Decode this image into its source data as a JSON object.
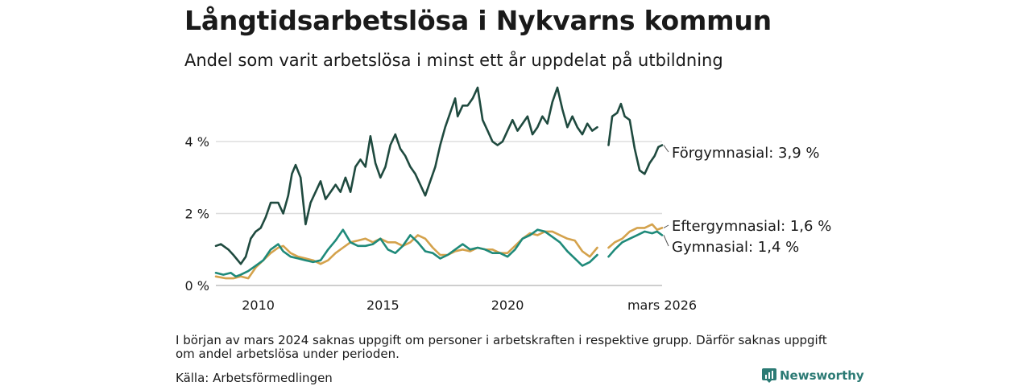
{
  "header": {
    "title": "Långtidsarbetslösa i Nykvarns kommun",
    "subtitle": "Andel som varit arbetslösa i minst ett år uppdelat på utbildning"
  },
  "footer": {
    "footnote": "I början av mars 2024 saknas uppgift om personer i arbetskraften i respektive grupp. Därför saknas uppgift om andel arbetslösa under perioden.",
    "source": "Källa: Arbetsförmedlingen",
    "brand": "Newsworthy"
  },
  "chart_data": {
    "type": "line",
    "title": "Långtidsarbetslösa i Nykvarns kommun",
    "subtitle": "Andel som varit arbetslösa i minst ett år uppdelat på utbildning",
    "xlabel": "",
    "ylabel": "",
    "xlim": [
      2008.3,
      2026.2
    ],
    "ylim": [
      0,
      5.7
    ],
    "y_ticks": [
      0,
      2,
      4
    ],
    "y_tick_labels": [
      "0 %",
      "2 %",
      "4 %"
    ],
    "x_ticks": [
      2010,
      2015,
      2020,
      2026.2
    ],
    "x_tick_labels": [
      "2010",
      "2015",
      "2020",
      "mars 2026"
    ],
    "grid": true,
    "gap": [
      2023.6,
      2024.05
    ],
    "series": [
      {
        "name": "Förgymnasial",
        "end_label": "Förgymnasial: 3,9 %",
        "color": "#1f4a3f",
        "points": [
          [
            2008.3,
            1.1
          ],
          [
            2008.5,
            1.15
          ],
          [
            2008.8,
            1.0
          ],
          [
            2009.0,
            0.85
          ],
          [
            2009.3,
            0.6
          ],
          [
            2009.5,
            0.8
          ],
          [
            2009.7,
            1.3
          ],
          [
            2009.9,
            1.5
          ],
          [
            2010.1,
            1.6
          ],
          [
            2010.3,
            1.9
          ],
          [
            2010.5,
            2.3
          ],
          [
            2010.8,
            2.3
          ],
          [
            2011.0,
            2.0
          ],
          [
            2011.2,
            2.5
          ],
          [
            2011.35,
            3.1
          ],
          [
            2011.5,
            3.35
          ],
          [
            2011.7,
            3.0
          ],
          [
            2011.9,
            1.7
          ],
          [
            2012.1,
            2.3
          ],
          [
            2012.3,
            2.6
          ],
          [
            2012.5,
            2.9
          ],
          [
            2012.7,
            2.4
          ],
          [
            2012.9,
            2.6
          ],
          [
            2013.1,
            2.8
          ],
          [
            2013.3,
            2.6
          ],
          [
            2013.5,
            3.0
          ],
          [
            2013.7,
            2.6
          ],
          [
            2013.9,
            3.3
          ],
          [
            2014.1,
            3.5
          ],
          [
            2014.3,
            3.3
          ],
          [
            2014.5,
            4.15
          ],
          [
            2014.7,
            3.4
          ],
          [
            2014.9,
            3.0
          ],
          [
            2015.1,
            3.3
          ],
          [
            2015.3,
            3.9
          ],
          [
            2015.5,
            4.2
          ],
          [
            2015.7,
            3.8
          ],
          [
            2015.9,
            3.6
          ],
          [
            2016.1,
            3.3
          ],
          [
            2016.3,
            3.1
          ],
          [
            2016.5,
            2.8
          ],
          [
            2016.7,
            2.5
          ],
          [
            2016.9,
            2.9
          ],
          [
            2017.1,
            3.3
          ],
          [
            2017.3,
            3.9
          ],
          [
            2017.5,
            4.4
          ],
          [
            2017.7,
            4.8
          ],
          [
            2017.9,
            5.2
          ],
          [
            2018.0,
            4.7
          ],
          [
            2018.2,
            5.0
          ],
          [
            2018.4,
            5.0
          ],
          [
            2018.6,
            5.2
          ],
          [
            2018.8,
            5.5
          ],
          [
            2019.0,
            4.6
          ],
          [
            2019.2,
            4.3
          ],
          [
            2019.4,
            4.0
          ],
          [
            2019.6,
            3.9
          ],
          [
            2019.8,
            4.0
          ],
          [
            2020.0,
            4.3
          ],
          [
            2020.2,
            4.6
          ],
          [
            2020.4,
            4.3
          ],
          [
            2020.6,
            4.5
          ],
          [
            2020.8,
            4.7
          ],
          [
            2021.0,
            4.2
          ],
          [
            2021.2,
            4.4
          ],
          [
            2021.4,
            4.7
          ],
          [
            2021.6,
            4.5
          ],
          [
            2021.8,
            5.1
          ],
          [
            2022.0,
            5.5
          ],
          [
            2022.2,
            4.9
          ],
          [
            2022.4,
            4.4
          ],
          [
            2022.6,
            4.7
          ],
          [
            2022.8,
            4.4
          ],
          [
            2023.0,
            4.2
          ],
          [
            2023.2,
            4.5
          ],
          [
            2023.4,
            4.3
          ],
          [
            2023.6,
            4.4
          ],
          [
            2024.05,
            3.9
          ],
          [
            2024.2,
            4.7
          ],
          [
            2024.4,
            4.8
          ],
          [
            2024.55,
            5.05
          ],
          [
            2024.7,
            4.7
          ],
          [
            2024.9,
            4.6
          ],
          [
            2025.1,
            3.8
          ],
          [
            2025.3,
            3.2
          ],
          [
            2025.5,
            3.1
          ],
          [
            2025.7,
            3.4
          ],
          [
            2025.9,
            3.6
          ],
          [
            2026.05,
            3.85
          ],
          [
            2026.2,
            3.9
          ]
        ]
      },
      {
        "name": "Eftergymnasial",
        "end_label": "Eftergymnasial: 1,6 %",
        "color": "#d4a24c",
        "points": [
          [
            2008.3,
            0.25
          ],
          [
            2008.7,
            0.2
          ],
          [
            2009.0,
            0.2
          ],
          [
            2009.3,
            0.25
          ],
          [
            2009.6,
            0.2
          ],
          [
            2009.9,
            0.5
          ],
          [
            2010.2,
            0.7
          ],
          [
            2010.5,
            0.9
          ],
          [
            2010.8,
            1.05
          ],
          [
            2011.0,
            1.1
          ],
          [
            2011.3,
            0.9
          ],
          [
            2011.6,
            0.8
          ],
          [
            2011.9,
            0.75
          ],
          [
            2012.2,
            0.7
          ],
          [
            2012.5,
            0.6
          ],
          [
            2012.8,
            0.7
          ],
          [
            2013.1,
            0.9
          ],
          [
            2013.4,
            1.05
          ],
          [
            2013.7,
            1.2
          ],
          [
            2014.0,
            1.25
          ],
          [
            2014.3,
            1.3
          ],
          [
            2014.6,
            1.2
          ],
          [
            2014.9,
            1.3
          ],
          [
            2015.2,
            1.2
          ],
          [
            2015.5,
            1.2
          ],
          [
            2015.8,
            1.1
          ],
          [
            2016.1,
            1.2
          ],
          [
            2016.4,
            1.4
          ],
          [
            2016.7,
            1.3
          ],
          [
            2017.0,
            1.05
          ],
          [
            2017.3,
            0.85
          ],
          [
            2017.6,
            0.85
          ],
          [
            2017.9,
            0.95
          ],
          [
            2018.2,
            1.0
          ],
          [
            2018.5,
            0.95
          ],
          [
            2018.8,
            1.05
          ],
          [
            2019.1,
            1.0
          ],
          [
            2019.4,
            1.0
          ],
          [
            2019.7,
            0.9
          ],
          [
            2020.0,
            0.9
          ],
          [
            2020.3,
            1.1
          ],
          [
            2020.6,
            1.3
          ],
          [
            2020.9,
            1.45
          ],
          [
            2021.2,
            1.4
          ],
          [
            2021.5,
            1.5
          ],
          [
            2021.8,
            1.5
          ],
          [
            2022.1,
            1.4
          ],
          [
            2022.4,
            1.3
          ],
          [
            2022.7,
            1.25
          ],
          [
            2023.0,
            0.95
          ],
          [
            2023.3,
            0.8
          ],
          [
            2023.6,
            1.05
          ],
          [
            2024.05,
            1.05
          ],
          [
            2024.3,
            1.2
          ],
          [
            2024.6,
            1.3
          ],
          [
            2024.9,
            1.5
          ],
          [
            2025.2,
            1.6
          ],
          [
            2025.5,
            1.6
          ],
          [
            2025.8,
            1.7
          ],
          [
            2026.0,
            1.55
          ],
          [
            2026.2,
            1.6
          ]
        ]
      },
      {
        "name": "Gymnasial",
        "end_label": "Gymnasial: 1,4 %",
        "color": "#1f8a7a",
        "points": [
          [
            2008.3,
            0.35
          ],
          [
            2008.6,
            0.3
          ],
          [
            2008.9,
            0.35
          ],
          [
            2009.1,
            0.25
          ],
          [
            2009.3,
            0.3
          ],
          [
            2009.6,
            0.4
          ],
          [
            2009.9,
            0.55
          ],
          [
            2010.2,
            0.7
          ],
          [
            2010.5,
            1.0
          ],
          [
            2010.8,
            1.15
          ],
          [
            2011.0,
            0.95
          ],
          [
            2011.3,
            0.8
          ],
          [
            2011.6,
            0.75
          ],
          [
            2011.9,
            0.7
          ],
          [
            2012.2,
            0.65
          ],
          [
            2012.5,
            0.7
          ],
          [
            2012.8,
            1.0
          ],
          [
            2013.1,
            1.25
          ],
          [
            2013.4,
            1.55
          ],
          [
            2013.7,
            1.2
          ],
          [
            2014.0,
            1.1
          ],
          [
            2014.3,
            1.1
          ],
          [
            2014.6,
            1.15
          ],
          [
            2014.9,
            1.3
          ],
          [
            2015.2,
            1.0
          ],
          [
            2015.5,
            0.9
          ],
          [
            2015.8,
            1.1
          ],
          [
            2016.1,
            1.4
          ],
          [
            2016.4,
            1.2
          ],
          [
            2016.7,
            0.95
          ],
          [
            2017.0,
            0.9
          ],
          [
            2017.3,
            0.75
          ],
          [
            2017.6,
            0.85
          ],
          [
            2017.9,
            1.0
          ],
          [
            2018.2,
            1.15
          ],
          [
            2018.5,
            1.0
          ],
          [
            2018.8,
            1.05
          ],
          [
            2019.1,
            1.0
          ],
          [
            2019.4,
            0.9
          ],
          [
            2019.7,
            0.9
          ],
          [
            2020.0,
            0.8
          ],
          [
            2020.3,
            1.0
          ],
          [
            2020.6,
            1.3
          ],
          [
            2020.9,
            1.4
          ],
          [
            2021.2,
            1.55
          ],
          [
            2021.5,
            1.5
          ],
          [
            2021.8,
            1.35
          ],
          [
            2022.1,
            1.2
          ],
          [
            2022.4,
            0.95
          ],
          [
            2022.7,
            0.75
          ],
          [
            2023.0,
            0.55
          ],
          [
            2023.3,
            0.65
          ],
          [
            2023.6,
            0.85
          ],
          [
            2024.05,
            0.8
          ],
          [
            2024.3,
            1.0
          ],
          [
            2024.6,
            1.2
          ],
          [
            2024.9,
            1.3
          ],
          [
            2025.2,
            1.4
          ],
          [
            2025.5,
            1.5
          ],
          [
            2025.8,
            1.45
          ],
          [
            2026.0,
            1.5
          ],
          [
            2026.2,
            1.4
          ]
        ]
      }
    ]
  }
}
